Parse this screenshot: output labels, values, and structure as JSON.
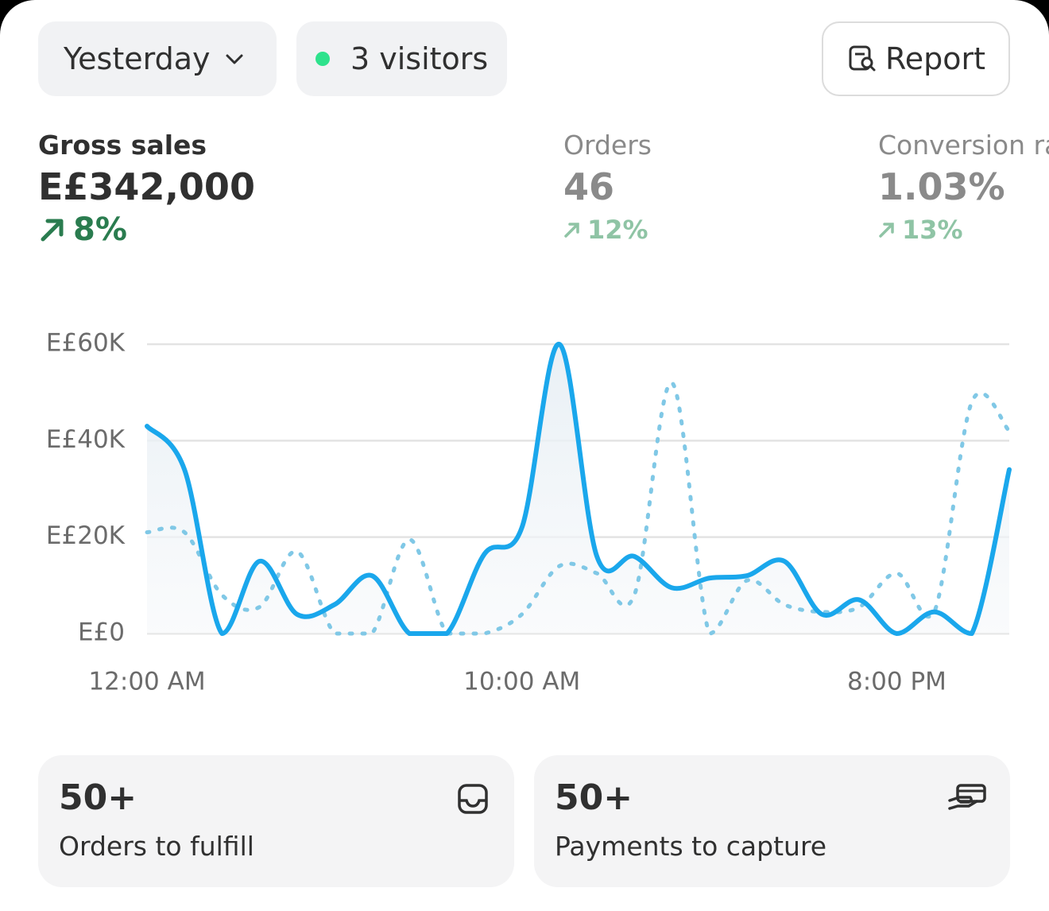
{
  "header": {
    "date_filter": "Yesterday",
    "visitors": "3 visitors",
    "report": "Report"
  },
  "metrics": [
    {
      "label": "Gross sales",
      "value": "E£342,000",
      "change": "8%"
    },
    {
      "label": "Orders",
      "value": "46",
      "change": "12%"
    },
    {
      "label": "Conversion rate",
      "value": "1.03%",
      "change": "13%"
    }
  ],
  "chart_data": {
    "type": "line",
    "categories": [
      "12:00 AM",
      null,
      null,
      null,
      null,
      null,
      null,
      null,
      null,
      null,
      "10:00 AM",
      null,
      null,
      null,
      null,
      null,
      null,
      null,
      null,
      null,
      "8:00 PM",
      null,
      null,
      null
    ],
    "series": [
      {
        "color": "#1aa7ec",
        "area": true,
        "dashed": false,
        "values": [
          43000,
          34000,
          0,
          15000,
          4000,
          6000,
          12000,
          0,
          0,
          16500,
          22000,
          60000,
          16000,
          16000,
          9500,
          11500,
          12000,
          15000,
          4000,
          7000,
          0,
          4500,
          0,
          34000
        ]
      },
      {
        "color": "#80c8e6",
        "area": false,
        "dashed": true,
        "values": [
          21000,
          21000,
          8000,
          5500,
          17000,
          0,
          0,
          19500,
          0,
          0,
          4000,
          14000,
          12500,
          8000,
          52000,
          0,
          11000,
          6000,
          4500,
          5500,
          12500,
          4500,
          48000,
          42000
        ]
      }
    ],
    "ylim": [
      0,
      60000
    ],
    "yticks": [
      {
        "value": 0,
        "label": "E£0"
      },
      {
        "value": 20000,
        "label": "E£20K"
      },
      {
        "value": 40000,
        "label": "E£40K"
      },
      {
        "value": 60000,
        "label": "E£60K"
      }
    ],
    "grid": true
  },
  "cards": [
    {
      "value": "50+",
      "label": "Orders to fulfill"
    },
    {
      "value": "50+",
      "label": "Payments to capture"
    }
  ]
}
